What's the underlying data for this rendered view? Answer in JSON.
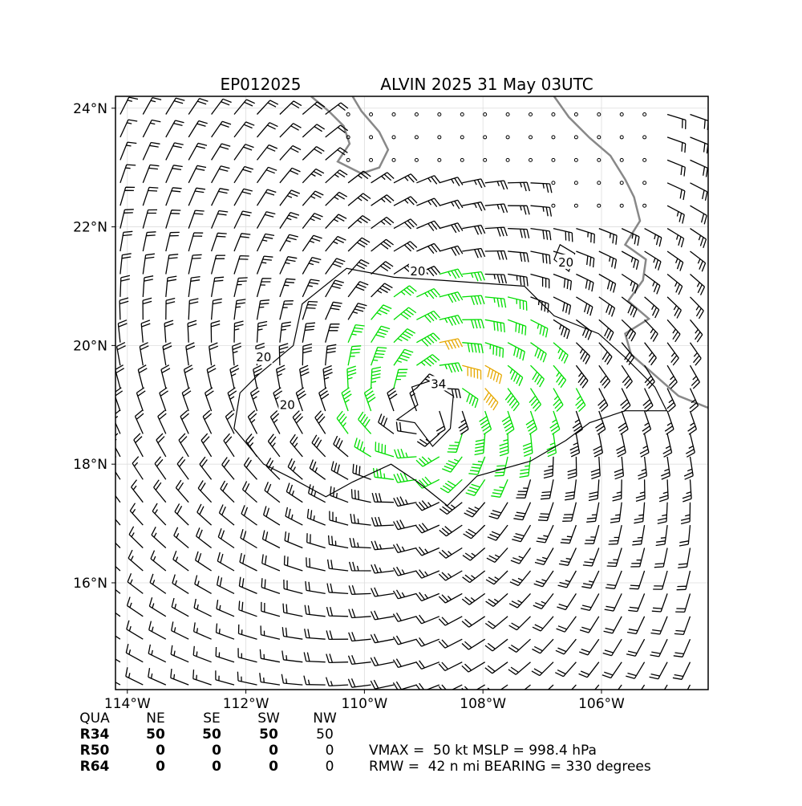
{
  "chart_data": {
    "type": "wind-barb-map",
    "title_left": "EP012025",
    "title_right": "ALVIN 2025 31 May 03UTC",
    "lon_range": [
      -114.2,
      -104.2
    ],
    "lat_range": [
      14.2,
      24.2
    ],
    "x_ticks": [
      {
        "value": -114,
        "label": "114°W"
      },
      {
        "value": -112,
        "label": "112°W"
      },
      {
        "value": -110,
        "label": "110°W"
      },
      {
        "value": -108,
        "label": "108°W"
      },
      {
        "value": -106,
        "label": "106°W"
      }
    ],
    "y_ticks": [
      {
        "value": 16,
        "label": "16°N"
      },
      {
        "value": 18,
        "label": "18°N"
      },
      {
        "value": 20,
        "label": "20°N"
      },
      {
        "value": 22,
        "label": "22°N"
      },
      {
        "value": 24,
        "label": "24°N"
      }
    ],
    "grid": true,
    "storm_center": {
      "lon": -108.9,
      "lat": 18.9
    },
    "contour_labels": [
      {
        "text": "20",
        "lon": -109.1,
        "lat": 21.25
      },
      {
        "text": "20",
        "lon": -111.7,
        "lat": 19.8
      },
      {
        "text": "20",
        "lon": -111.3,
        "lat": 19.0
      },
      {
        "text": "20",
        "lon": -106.6,
        "lat": 21.4
      },
      {
        "text": "34",
        "lon": -108.75,
        "lat": 19.35
      }
    ],
    "barb_colors": {
      "below34": "#000000",
      "34to50": "#00dd00",
      "50plus": "#e6a800"
    },
    "coast_color": "#888888",
    "contour_color": "#000000"
  },
  "table": {
    "headers": [
      "QUA",
      "NE",
      "SE",
      "SW",
      "NW"
    ],
    "rows": [
      {
        "label": "R34",
        "values": [
          "50",
          "50",
          "50",
          "50"
        ]
      },
      {
        "label": "R50",
        "values": [
          "0",
          "0",
          "0",
          "0"
        ]
      },
      {
        "label": "R64",
        "values": [
          "0",
          "0",
          "0",
          "0"
        ]
      }
    ]
  },
  "summary": {
    "line1": "VMAX =  50 kt MSLP = 998.4 hPa",
    "line2": "RMW =  42 n mi BEARING = 330 degrees"
  }
}
